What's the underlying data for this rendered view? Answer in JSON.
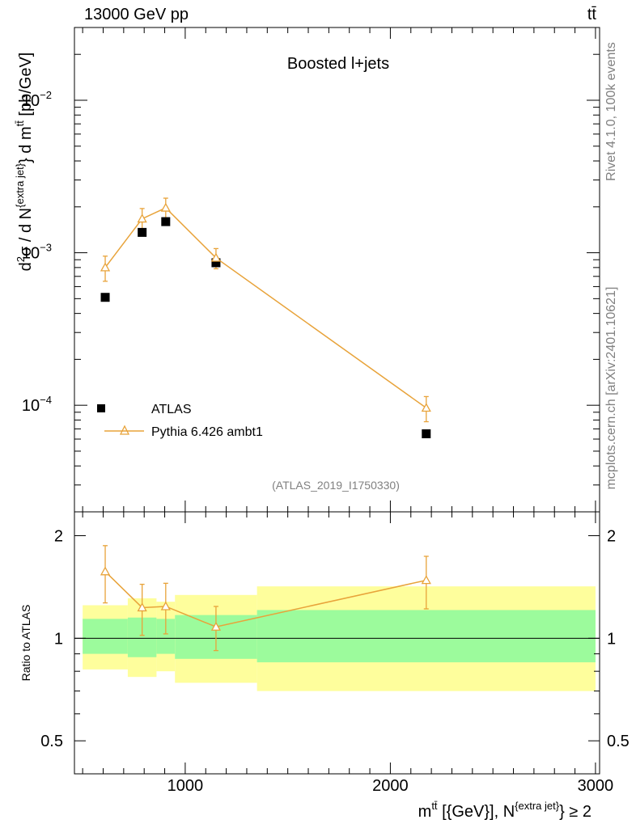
{
  "header": {
    "left": "13000 GeV pp",
    "right": "tt̄"
  },
  "chart_data": {
    "type": "scatter",
    "title": "Boosted l+jets",
    "analysis_id": "(ATLAS_2019_I1750330)",
    "side_text_top": "Rivet 4.1.0,  100k events",
    "side_text_bottom": "mcplots.cern.ch [arXiv:2401.10621]",
    "xlabel": "m^{tt̄} [{GeV}], N^{extra jet} ≥ 2",
    "xlabel_parts": {
      "m": "m",
      "tt": "tt̄",
      "mid": " [{GeV}], N",
      "extra": "{extra jet}",
      "end": "} ≥ 2"
    },
    "ylabel": "d²σ / d N^{extra jet} } d m^{tt̄} [pb/GeV]",
    "ylabel_parts": {
      "pre": "d",
      "two": "2",
      "sig": "σ /  d N",
      "extra": "{extra jet}",
      "mid": "} d m",
      "tt": "tt̄",
      "end": " [pb/GeV]"
    },
    "xlim": [
      460,
      3020
    ],
    "ylim": [
      2e-05,
      0.03
    ],
    "yscale": "log",
    "x_ticks": [
      1000,
      2000,
      3000
    ],
    "x_tick_labels": [
      "1000",
      "2000",
      "3000"
    ],
    "y_major_ticks": [
      0.0001,
      0.001,
      0.01
    ],
    "y_tick_labels": [
      {
        "base": "10",
        "exp": "−4"
      },
      {
        "base": "10",
        "exp": "−3"
      },
      {
        "base": "10",
        "exp": "−2"
      }
    ],
    "bins": [
      {
        "lo": 500,
        "hi": 720
      },
      {
        "lo": 720,
        "hi": 860
      },
      {
        "lo": 860,
        "hi": 950
      },
      {
        "lo": 950,
        "hi": 1350
      },
      {
        "lo": 1350,
        "hi": 3000
      }
    ],
    "series": [
      {
        "name": "ATLAS",
        "marker": "square",
        "color": "#000000",
        "x": [
          610,
          790,
          905,
          1150,
          2175
        ],
        "y": [
          0.00051,
          0.00136,
          0.0016,
          0.00086,
          6.5e-05
        ]
      },
      {
        "name": "Pythia 6.426 ambt1",
        "marker": "triangle",
        "color": "#e8a33a",
        "x": [
          610,
          790,
          905,
          1150,
          2175
        ],
        "y": [
          0.0008,
          0.00167,
          0.00197,
          0.000925,
          9.6e-05
        ],
        "yerr_lo": [
          0.00015,
          0.00028,
          0.00031,
          0.00014,
          1.8e-05
        ],
        "yerr_hi": [
          0.00015,
          0.00028,
          0.00031,
          0.00014,
          1.8e-05
        ]
      }
    ],
    "legend": [
      {
        "label": "ATLAS",
        "marker": "square"
      },
      {
        "label": "Pythia 6.426 ambt1",
        "marker": "triangle"
      }
    ],
    "legend_position": "bottom-left",
    "ratio": {
      "ylabel": "Ratio to ATLAS",
      "ylim": [
        0.4,
        2.35
      ],
      "y_ticks": [
        0.5,
        1,
        2
      ],
      "y_tick_labels": [
        "0.5",
        "1",
        "2"
      ],
      "pythia_ratio": [
        1.57,
        1.23,
        1.24,
        1.08,
        1.48
      ],
      "pythia_ratio_err": [
        0.3,
        0.21,
        0.21,
        0.16,
        0.26
      ],
      "band_inner": [
        {
          "lo": 0.9,
          "hi": 1.14
        },
        {
          "lo": 0.88,
          "hi": 1.15
        },
        {
          "lo": 0.9,
          "hi": 1.14
        },
        {
          "lo": 0.87,
          "hi": 1.17
        },
        {
          "lo": 0.85,
          "hi": 1.21
        }
      ],
      "band_outer": [
        {
          "lo": 0.81,
          "hi": 1.25
        },
        {
          "lo": 0.77,
          "hi": 1.31
        },
        {
          "lo": 0.8,
          "hi": 1.28
        },
        {
          "lo": 0.74,
          "hi": 1.34
        },
        {
          "lo": 0.7,
          "hi": 1.42
        }
      ],
      "band_inner_color": "#9cfb9c",
      "band_outer_color": "#fefe9c"
    }
  }
}
